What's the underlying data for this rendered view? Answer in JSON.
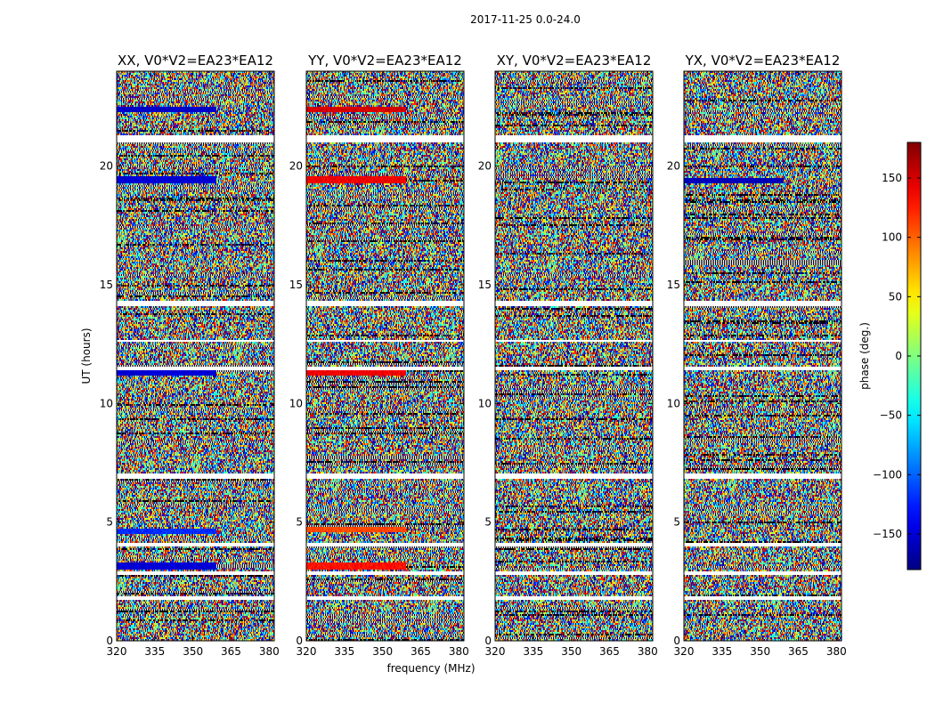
{
  "chart_data": {
    "type": "heatmap",
    "suptitle": "2017-11-25 0.0-24.0",
    "xlabel": "frequency (MHz)",
    "ylabel": "UT (hours)",
    "xlim": [
      320,
      382
    ],
    "ylim": [
      0,
      24
    ],
    "xticks": [
      320,
      335,
      350,
      365,
      380
    ],
    "yticks": [
      0,
      5,
      10,
      15,
      20
    ],
    "colormap": "jet",
    "colorbar": {
      "label": "phase (deg.)",
      "range": [
        -180,
        180
      ],
      "ticks": [
        150,
        100,
        50,
        0,
        -50,
        -100,
        -150
      ],
      "tick_labels": [
        "150",
        "100",
        "50",
        "0",
        "−50",
        "−100",
        "−150"
      ]
    },
    "flagged_bands_hours": [
      [
        1.7,
        1.9
      ],
      [
        2.75,
        2.9
      ],
      [
        3.95,
        4.1
      ],
      [
        6.85,
        7.05
      ],
      [
        11.4,
        11.55
      ],
      [
        12.6,
        12.7
      ],
      [
        14.1,
        14.3
      ],
      [
        21.0,
        21.3
      ]
    ],
    "panels": [
      {
        "title": "XX, V0*V2=EA23*EA12",
        "strong_rows": [
          {
            "t0": 3.0,
            "t1": 3.3,
            "phase": -150
          },
          {
            "t0": 11.2,
            "t1": 11.4,
            "phase": -150
          },
          {
            "t0": 19.3,
            "t1": 19.6,
            "phase": -150
          },
          {
            "t0": 22.3,
            "t1": 22.5,
            "phase": -155
          },
          {
            "t0": 4.5,
            "t1": 4.7,
            "phase": -120
          }
        ]
      },
      {
        "title": "YY, V0*V2=EA23*EA12",
        "strong_rows": [
          {
            "t0": 3.0,
            "t1": 3.3,
            "phase": 130
          },
          {
            "t0": 11.2,
            "t1": 11.4,
            "phase": 140
          },
          {
            "t0": 19.3,
            "t1": 19.6,
            "phase": 140
          },
          {
            "t0": 22.3,
            "t1": 22.5,
            "phase": 150
          },
          {
            "t0": 4.6,
            "t1": 4.8,
            "phase": 110
          }
        ]
      },
      {
        "title": "XY, V0*V2=EA23*EA12",
        "strong_rows": []
      },
      {
        "title": "YX, V0*V2=EA23*EA12",
        "strong_rows": [
          {
            "t0": 19.3,
            "t1": 19.5,
            "phase": -160
          }
        ]
      }
    ]
  }
}
